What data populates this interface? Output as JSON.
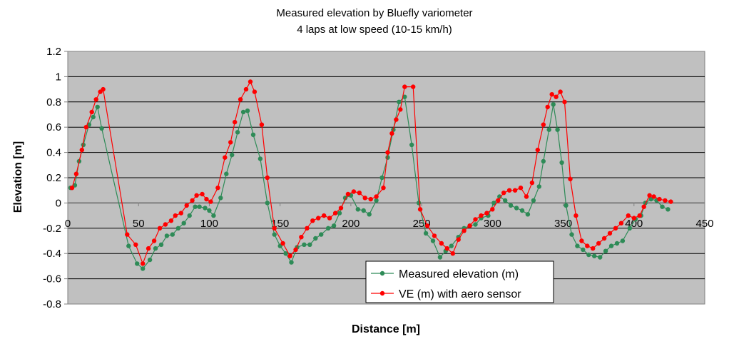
{
  "chart_data": {
    "type": "line",
    "title": "Measured elevation by Bluefly variometer",
    "subtitle": "4 laps at low speed (10-15 km/h)",
    "xlabel": "Distance [m]",
    "ylabel": "Elevation [m]",
    "xlim": [
      0,
      450
    ],
    "ylim": [
      -0.8,
      1.2
    ],
    "xticks": [
      0,
      50,
      100,
      150,
      200,
      250,
      300,
      350,
      400,
      450
    ],
    "yticks": [
      -0.8,
      -0.6,
      -0.4,
      -0.2,
      0,
      0.2,
      0.4,
      0.6,
      0.8,
      1,
      1.2
    ],
    "ytick_labels": [
      "-0.8",
      "-0.6",
      "-0.4",
      "-0.2",
      "0",
      "0.2",
      "0.4",
      "0.6",
      "0.8",
      "1",
      "1.2"
    ],
    "grid": "horizontal",
    "background": "#c0c0c0",
    "legend_position": "bottom-right",
    "series": [
      {
        "name": "Measured elevation (m)",
        "color": "#2e8b57",
        "marker": "circle",
        "x": [
          2,
          5,
          8,
          11,
          15,
          18,
          21,
          24,
          43,
          49,
          53,
          58,
          62,
          66,
          70,
          74,
          78,
          82,
          86,
          90,
          93,
          97,
          100,
          103,
          108,
          112,
          116,
          120,
          124,
          127,
          131,
          136,
          141,
          146,
          150,
          154,
          158,
          162,
          167,
          171,
          175,
          179,
          184,
          188,
          192,
          196,
          200,
          205,
          209,
          213,
          218,
          222,
          226,
          230,
          234,
          238,
          243,
          248,
          253,
          258,
          263,
          267,
          271,
          276,
          280,
          284,
          288,
          292,
          297,
          301,
          305,
          309,
          313,
          317,
          321,
          325,
          329,
          333,
          336,
          340,
          343,
          346,
          349,
          352,
          356,
          360,
          364,
          368,
          372,
          376,
          380,
          384,
          388,
          392,
          397,
          401,
          405,
          408,
          412,
          416,
          420,
          424
        ],
        "values": [
          0.12,
          0.14,
          0.33,
          0.46,
          0.62,
          0.68,
          0.76,
          0.59,
          -0.34,
          -0.48,
          -0.52,
          -0.45,
          -0.36,
          -0.33,
          -0.26,
          -0.25,
          -0.2,
          -0.16,
          -0.1,
          -0.03,
          -0.03,
          -0.04,
          -0.06,
          -0.1,
          0.04,
          0.23,
          0.38,
          0.56,
          0.72,
          0.73,
          0.54,
          0.35,
          0.0,
          -0.25,
          -0.34,
          -0.4,
          -0.47,
          -0.35,
          -0.33,
          -0.33,
          -0.28,
          -0.25,
          -0.2,
          -0.18,
          -0.08,
          0.04,
          0.06,
          -0.05,
          -0.06,
          -0.09,
          0.02,
          0.2,
          0.36,
          0.58,
          0.8,
          0.84,
          0.46,
          0.0,
          -0.24,
          -0.3,
          -0.43,
          -0.38,
          -0.34,
          -0.27,
          -0.2,
          -0.18,
          -0.17,
          -0.12,
          -0.1,
          0.0,
          0.05,
          0.02,
          -0.02,
          -0.04,
          -0.06,
          -0.09,
          0.02,
          0.13,
          0.33,
          0.58,
          0.78,
          0.58,
          0.32,
          -0.02,
          -0.25,
          -0.34,
          -0.37,
          -0.41,
          -0.42,
          -0.43,
          -0.38,
          -0.34,
          -0.32,
          -0.3,
          -0.2,
          -0.13,
          -0.1,
          0.0,
          0.03,
          0.02,
          -0.03,
          -0.05
        ]
      },
      {
        "name": "VE (m) with aero sensor",
        "color": "#ff0000",
        "marker": "circle",
        "x": [
          3,
          6,
          10,
          13,
          17,
          20,
          23,
          25,
          42,
          48,
          53,
          57,
          61,
          65,
          69,
          73,
          76,
          80,
          84,
          88,
          91,
          95,
          98,
          101,
          106,
          111,
          115,
          118,
          122,
          126,
          129,
          132,
          137,
          141,
          146,
          152,
          157,
          161,
          165,
          169,
          173,
          177,
          181,
          185,
          189,
          193,
          198,
          202,
          206,
          210,
          214,
          218,
          223,
          226,
          229,
          232,
          235,
          238,
          244,
          249,
          254,
          259,
          264,
          268,
          272,
          276,
          280,
          284,
          288,
          292,
          296,
          300,
          304,
          308,
          312,
          316,
          320,
          324,
          328,
          332,
          336,
          339,
          342,
          345,
          348,
          351,
          355,
          359,
          363,
          367,
          371,
          375,
          379,
          383,
          387,
          391,
          396,
          400,
          404,
          407,
          411,
          414,
          418,
          422,
          426
        ],
        "values": [
          0.12,
          0.23,
          0.42,
          0.6,
          0.72,
          0.82,
          0.88,
          0.9,
          -0.25,
          -0.33,
          -0.48,
          -0.36,
          -0.3,
          -0.2,
          -0.17,
          -0.14,
          -0.1,
          -0.08,
          -0.02,
          0.02,
          0.06,
          0.07,
          0.03,
          0.01,
          0.12,
          0.36,
          0.48,
          0.64,
          0.82,
          0.9,
          0.96,
          0.88,
          0.62,
          0.2,
          -0.2,
          -0.32,
          -0.42,
          -0.37,
          -0.27,
          -0.2,
          -0.14,
          -0.12,
          -0.1,
          -0.12,
          -0.08,
          -0.04,
          0.07,
          0.09,
          0.08,
          0.04,
          0.03,
          0.05,
          0.12,
          0.4,
          0.55,
          0.66,
          0.74,
          0.92,
          0.92,
          -0.05,
          -0.18,
          -0.26,
          -0.32,
          -0.36,
          -0.4,
          -0.29,
          -0.22,
          -0.18,
          -0.13,
          -0.1,
          -0.08,
          -0.05,
          0.02,
          0.08,
          0.1,
          0.1,
          0.12,
          0.05,
          0.16,
          0.42,
          0.62,
          0.76,
          0.86,
          0.84,
          0.88,
          0.8,
          0.19,
          -0.1,
          -0.3,
          -0.34,
          -0.36,
          -0.32,
          -0.28,
          -0.24,
          -0.2,
          -0.16,
          -0.1,
          -0.12,
          -0.1,
          -0.03,
          0.06,
          0.05,
          0.03,
          0.02,
          0.01
        ]
      }
    ]
  }
}
